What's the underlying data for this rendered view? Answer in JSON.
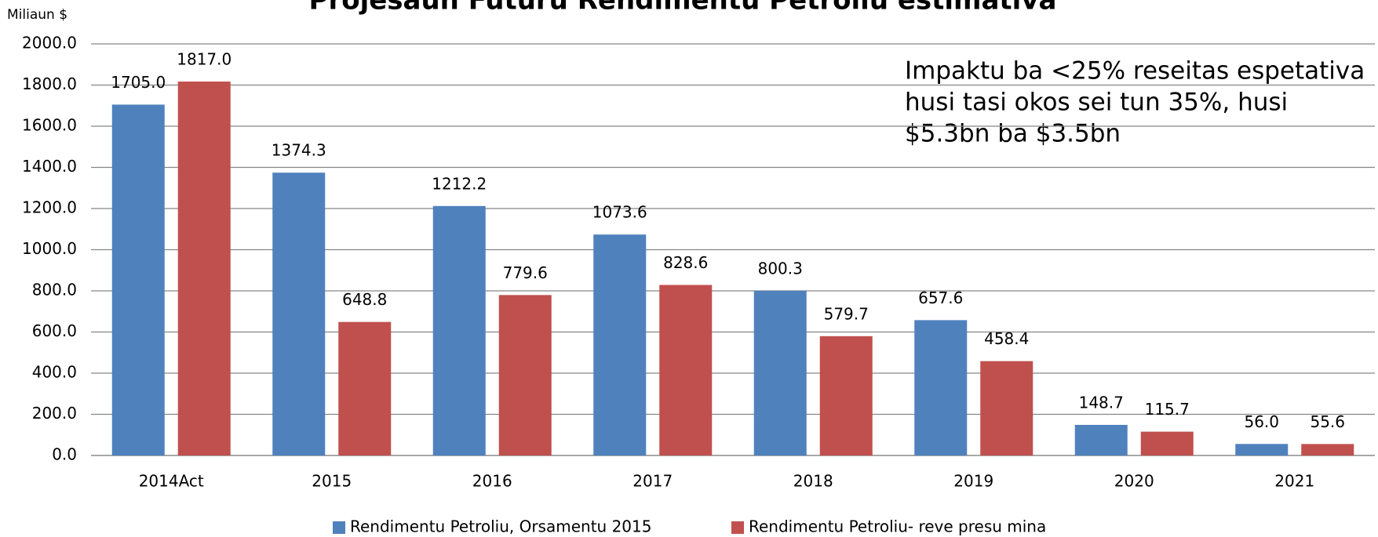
{
  "chart_data": {
    "type": "bar",
    "title": "Projesaun Futuru Rendimentu Petroliu estimativa",
    "y_label": "Miliaun $",
    "annotation": [
      "Impaktu ba <25% reseitas espetativa",
      "husi tasi okos sei tun 35%, husi",
      "$5.3bn ba $3.5bn"
    ],
    "categories": [
      "2014Act",
      "2015",
      "2016",
      "2017",
      "2018",
      "2019",
      "2020",
      "2021"
    ],
    "series": [
      {
        "name": "Rendimentu Petroliu, Orsamentu 2015",
        "color": "#4f81bd",
        "values": [
          1705,
          1374.3,
          1212.2,
          1073.6,
          800.3,
          657.6,
          148.7,
          56
        ],
        "value_labels": [
          "1705.0",
          "1374.3",
          "1212.2",
          "1073.6",
          "800.3",
          "657.6",
          "148.7",
          "56.0"
        ]
      },
      {
        "name": "Rendimentu Petroliu- reve presu mina",
        "color": "#c0504d",
        "values": [
          1817,
          648.8,
          779.6,
          828.6,
          579.7,
          458.4,
          115.7,
          55.6
        ],
        "value_labels": [
          "1817.0",
          "648.8",
          "779.6",
          "828.6",
          "579.7",
          "458.4",
          "115.7",
          "55.6"
        ]
      }
    ],
    "ylim": [
      0,
      2000
    ],
    "yticks": [
      {
        "value": 0,
        "label": "0.0"
      },
      {
        "value": 200,
        "label": "200.0"
      },
      {
        "value": 400,
        "label": "400.0"
      },
      {
        "value": 600,
        "label": "600.0"
      },
      {
        "value": 800,
        "label": "800.0"
      },
      {
        "value": 1000,
        "label": "1000.0"
      },
      {
        "value": 1200,
        "label": "1200.0"
      },
      {
        "value": 1400,
        "label": "1400.0"
      },
      {
        "value": 1600,
        "label": "1600.0"
      },
      {
        "value": 1800,
        "label": "1800.0"
      },
      {
        "value": 2000,
        "label": "2000.0"
      }
    ],
    "grid": true,
    "legend": "bottom"
  }
}
